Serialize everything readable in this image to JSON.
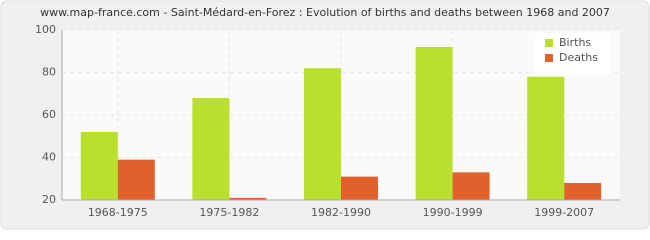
{
  "chart_data": {
    "type": "bar",
    "title": "www.map-france.com - Saint-Médard-en-Forez : Evolution of births and deaths between 1968 and 2007",
    "categories": [
      "1968-1975",
      "1975-1982",
      "1982-1990",
      "1990-1999",
      "1999-2007"
    ],
    "series": [
      {
        "name": "Births",
        "color": "#b8e02c",
        "values": [
          52,
          68,
          82,
          92,
          78
        ]
      },
      {
        "name": "Deaths",
        "color": "#e0612c",
        "values": [
          39,
          21,
          31,
          33,
          28
        ]
      }
    ],
    "ylim": [
      20,
      100
    ],
    "yticks": [
      20,
      40,
      60,
      80,
      100
    ],
    "grid": true,
    "legend": "top-right"
  }
}
